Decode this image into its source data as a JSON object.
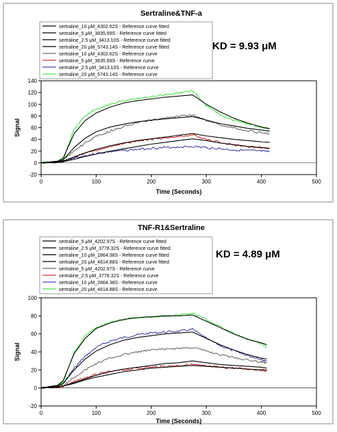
{
  "charts": [
    {
      "type": "line",
      "title": "Sertraline&TNF-a",
      "annotation": "KD = 9.93 μM",
      "xlabel": "Time (Seconds)",
      "ylabel": "Signal",
      "xlim": [
        0,
        500
      ],
      "ylim": [
        -20,
        140
      ],
      "xticks": [
        0,
        100,
        200,
        300,
        400,
        500
      ],
      "yticks": [
        -20,
        0,
        20,
        40,
        60,
        80,
        100,
        120,
        140
      ],
      "grid": false,
      "legend_position": "top-left",
      "series": [
        {
          "name": "sertraline_10 μM_4302.62S - Reference curve fitted",
          "color": "#000000",
          "kind": "fit",
          "x": [
            0,
            30,
            40,
            60,
            80,
            100,
            125,
            150,
            175,
            200,
            225,
            250,
            275,
            300,
            325,
            350,
            375,
            400,
            415
          ],
          "y": [
            0,
            2,
            5,
            26,
            42,
            53,
            61,
            66,
            70,
            73,
            75,
            77,
            79,
            73,
            67,
            63,
            59,
            56,
            54
          ]
        },
        {
          "name": "sertraline_5 μM_3835.99S - Reference curve fitted",
          "color": "#000000",
          "kind": "fit",
          "x": [
            0,
            30,
            40,
            60,
            80,
            100,
            125,
            150,
            175,
            200,
            225,
            250,
            275,
            300,
            325,
            350,
            375,
            400,
            415
          ],
          "y": [
            0,
            1,
            3,
            10,
            17,
            23,
            29,
            34,
            38,
            41,
            44,
            47,
            50,
            46,
            43,
            40,
            38,
            36,
            35
          ]
        },
        {
          "name": "sertraline_2.5 μM_3413.10S - Reference curve fitted",
          "color": "#000000",
          "kind": "fit",
          "x": [
            0,
            30,
            40,
            60,
            80,
            100,
            125,
            150,
            175,
            200,
            225,
            250,
            275,
            300,
            325,
            350,
            375,
            400,
            415
          ],
          "y": [
            0,
            1,
            2,
            6,
            11,
            15,
            20,
            24,
            28,
            32,
            35,
            38,
            41,
            38,
            34,
            31,
            28,
            26,
            25
          ]
        },
        {
          "name": "sertraline_20 μM_5743.14S - Reference curve fitted",
          "color": "#000000",
          "kind": "fit",
          "x": [
            0,
            30,
            40,
            60,
            80,
            100,
            125,
            150,
            175,
            200,
            225,
            250,
            275,
            300,
            325,
            350,
            375,
            400,
            415
          ],
          "y": [
            0,
            3,
            8,
            50,
            72,
            85,
            95,
            102,
            106,
            109,
            112,
            114,
            116,
            100,
            87,
            76,
            68,
            61,
            58
          ]
        },
        {
          "name": "sertraline_10 μM_4302.62S - Reference curve",
          "color": "#4a4a4a",
          "kind": "raw",
          "x": [
            0,
            30,
            40,
            60,
            80,
            100,
            125,
            150,
            175,
            200,
            225,
            250,
            275,
            300,
            325,
            350,
            375,
            400,
            415
          ],
          "y": [
            0,
            2,
            5,
            20,
            34,
            45,
            54,
            62,
            68,
            73,
            76,
            80,
            82,
            72,
            65,
            60,
            55,
            51,
            50
          ]
        },
        {
          "name": "sertraline_5 μM_3835.99S - Reference curve",
          "color": "#c00000",
          "kind": "raw",
          "x": [
            0,
            30,
            40,
            60,
            80,
            100,
            125,
            150,
            175,
            200,
            225,
            250,
            275,
            300,
            325,
            350,
            375,
            400,
            415
          ],
          "y": [
            0,
            1,
            3,
            10,
            16,
            22,
            28,
            33,
            37,
            40,
            42,
            45,
            47,
            40,
            35,
            31,
            28,
            26,
            24
          ]
        },
        {
          "name": "sertraline_2.5 μM_3413.10S - Reference curve",
          "color": "#1a1aa0",
          "kind": "raw",
          "x": [
            0,
            30,
            40,
            60,
            80,
            100,
            125,
            150,
            175,
            200,
            225,
            250,
            275,
            300,
            325,
            350,
            375,
            400,
            415
          ],
          "y": [
            0,
            1,
            2,
            8,
            12,
            16,
            19,
            21,
            23,
            25,
            26,
            27,
            28,
            26,
            24,
            22,
            21,
            20,
            19
          ]
        },
        {
          "name": "sertraline_20 μM_5743.14S - Reference curve",
          "color": "#22dd22",
          "kind": "raw",
          "x": [
            0,
            30,
            40,
            60,
            80,
            100,
            125,
            150,
            175,
            200,
            225,
            250,
            275,
            300,
            325,
            350,
            375,
            400,
            415
          ],
          "y": [
            0,
            2,
            6,
            58,
            80,
            92,
            100,
            106,
            110,
            113,
            116,
            119,
            123,
            98,
            82,
            72,
            66,
            61,
            59
          ]
        }
      ]
    },
    {
      "type": "line",
      "title": "TNF-R1&Sertraline",
      "annotation": "KD = 4.89 μM",
      "xlabel": "Time (Seconds)",
      "ylabel": "Signal",
      "xlim": [
        0,
        500
      ],
      "ylim": [
        -20,
        100
      ],
      "xticks": [
        0,
        100,
        200,
        300,
        400,
        500
      ],
      "yticks": [
        -20,
        0,
        20,
        40,
        60,
        80,
        100
      ],
      "grid": false,
      "legend_position": "top-left",
      "series": [
        {
          "name": "sertraline_5 μM_4202.97S - Reference curve fitted",
          "color": "#000000",
          "kind": "fit",
          "x": [
            0,
            30,
            40,
            60,
            80,
            100,
            125,
            150,
            175,
            200,
            225,
            250,
            275,
            300,
            325,
            350,
            375,
            400,
            410
          ],
          "y": [
            0,
            1,
            2,
            6,
            10,
            14,
            18,
            21,
            23,
            25,
            27,
            28,
            30,
            28,
            26,
            25,
            24,
            23,
            22
          ]
        },
        {
          "name": "sertraline_2.5 μM_3778.32S - Reference curve fitted",
          "color": "#000000",
          "kind": "fit",
          "x": [
            0,
            30,
            40,
            60,
            80,
            100,
            125,
            150,
            175,
            200,
            225,
            250,
            275,
            300,
            325,
            350,
            375,
            400,
            410
          ],
          "y": [
            0,
            1,
            2,
            5,
            9,
            12,
            15,
            18,
            20,
            22,
            23,
            24,
            25,
            24,
            23,
            22,
            21,
            20,
            20
          ]
        },
        {
          "name": "sertraline_10 μM_2864.38S - Reference curve fitted",
          "color": "#000000",
          "kind": "fit",
          "x": [
            0,
            30,
            40,
            60,
            80,
            100,
            125,
            150,
            175,
            200,
            225,
            250,
            275,
            300,
            325,
            350,
            375,
            400,
            410
          ],
          "y": [
            0,
            2,
            5,
            20,
            32,
            41,
            48,
            53,
            56,
            58,
            60,
            61,
            62,
            55,
            48,
            42,
            37,
            33,
            32
          ]
        },
        {
          "name": "sertraline_20 μM_4614.88S - Reference curve fitted",
          "color": "#000000",
          "kind": "fit",
          "x": [
            0,
            30,
            40,
            60,
            80,
            100,
            125,
            150,
            175,
            200,
            225,
            250,
            275,
            300,
            325,
            350,
            375,
            400,
            410
          ],
          "y": [
            0,
            3,
            8,
            38,
            55,
            66,
            72,
            76,
            78,
            79,
            80,
            80,
            81,
            74,
            67,
            60,
            54,
            50,
            48
          ]
        },
        {
          "name": "sertraline_5 μM_4202.97S - Reference curve",
          "color": "#4a4a4a",
          "kind": "raw",
          "x": [
            0,
            30,
            40,
            60,
            80,
            100,
            125,
            150,
            175,
            200,
            225,
            250,
            275,
            300,
            325,
            350,
            375,
            400,
            410
          ],
          "y": [
            0,
            1,
            3,
            12,
            20,
            27,
            33,
            37,
            40,
            42,
            43,
            44,
            45,
            41,
            37,
            34,
            31,
            29,
            28
          ]
        },
        {
          "name": "sertraline_2.5 μM_3778.32S - Reference curve",
          "color": "#c00000",
          "kind": "raw",
          "x": [
            0,
            30,
            40,
            60,
            80,
            100,
            125,
            150,
            175,
            200,
            225,
            250,
            275,
            300,
            325,
            350,
            375,
            400,
            410
          ],
          "y": [
            0,
            1,
            2,
            7,
            11,
            15,
            18,
            20,
            22,
            23,
            24,
            25,
            26,
            24,
            23,
            22,
            21,
            20,
            19
          ]
        },
        {
          "name": "sertraline_10 μM_2864.38S - Reference curve",
          "color": "#1a1aa0",
          "kind": "raw",
          "x": [
            0,
            30,
            40,
            60,
            80,
            100,
            125,
            150,
            175,
            200,
            225,
            250,
            275,
            300,
            325,
            350,
            375,
            400,
            410
          ],
          "y": [
            0,
            2,
            5,
            22,
            35,
            45,
            52,
            56,
            59,
            61,
            62,
            63,
            65,
            55,
            47,
            41,
            36,
            32,
            30
          ]
        },
        {
          "name": "sertraline_20 μM_4614.88S - Reference curve",
          "color": "#22dd22",
          "kind": "raw",
          "x": [
            0,
            30,
            40,
            60,
            80,
            100,
            125,
            150,
            175,
            200,
            225,
            250,
            275,
            300,
            325,
            350,
            375,
            400,
            410
          ],
          "y": [
            0,
            2,
            6,
            40,
            58,
            67,
            73,
            76,
            78,
            79,
            80,
            81,
            83,
            76,
            68,
            60,
            54,
            49,
            45
          ]
        }
      ]
    }
  ]
}
